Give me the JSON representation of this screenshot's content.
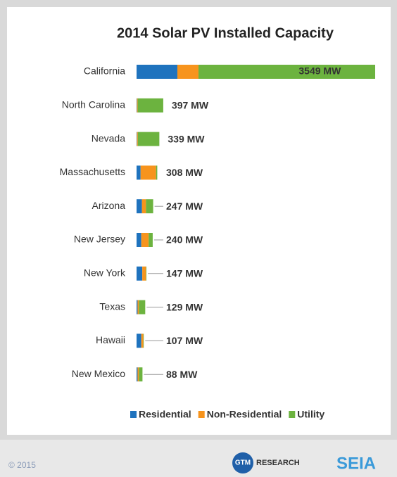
{
  "chart_data": {
    "type": "stacked_bar_horizontal",
    "title": "2014 Solar PV Installed Capacity",
    "categories": [
      "California",
      "North Carolina",
      "Nevada",
      "Massachusetts",
      "Arizona",
      "New Jersey",
      "New York",
      "Texas",
      "Hawaii",
      "New Mexico"
    ],
    "series": [
      {
        "name": "Residential",
        "color": "#1f73be",
        "values": [
          607,
          5,
          5,
          60,
          80,
          70,
          85,
          15,
          70,
          15
        ]
      },
      {
        "name": "Non-Residential",
        "color": "#f7941d",
        "values": [
          314,
          12,
          14,
          230,
          60,
          110,
          55,
          20,
          30,
          20
        ]
      },
      {
        "name": "Utility",
        "color": "#6cb33f",
        "values": [
          2628,
          380,
          320,
          18,
          107,
          60,
          7,
          94,
          7,
          53
        ]
      }
    ],
    "totals": [
      3549,
      397,
      339,
      308,
      247,
      240,
      147,
      129,
      107,
      88
    ],
    "total_labels": [
      "3549 MW",
      "397 MW",
      "339 MW",
      "308 MW",
      "247 MW",
      "240 MW",
      "147 MW",
      "129 MW",
      "107 MW",
      "88 MW"
    ],
    "legend": "bottom"
  },
  "footer": {
    "copyright": "© 2015",
    "logos": [
      "GTM",
      "RESEARCH",
      "SEIA"
    ]
  }
}
